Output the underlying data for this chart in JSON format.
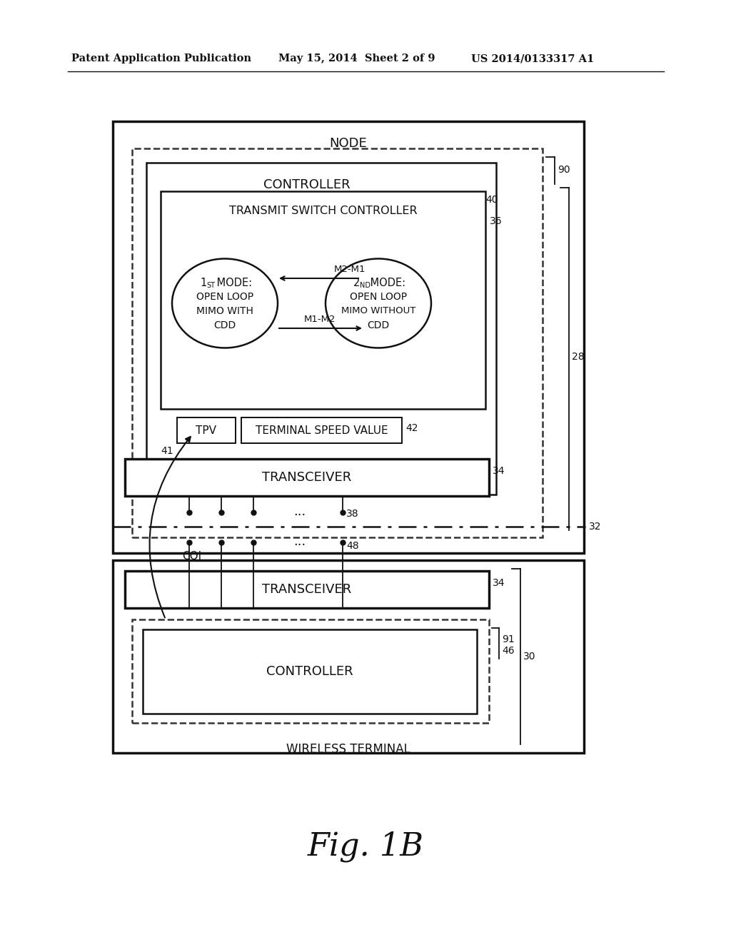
{
  "bg_color": "#ffffff",
  "header_left": "Patent Application Publication",
  "header_mid": "May 15, 2014  Sheet 2 of 9",
  "header_right": "US 2014/0133317 A1",
  "fig_caption": "Fig. 1B",
  "node_label": "NODE",
  "controller_label": "CONTROLLER",
  "tsc_label": "TRANSMIT SWITCH CONTROLLER",
  "m2m1_label": "M2-M1",
  "m1m2_label": "M1-M2",
  "tpv_label": "TPV",
  "tsv_label": "TERMINAL SPEED VALUE",
  "transceiver_label": "TRANSCEIVER",
  "cqi_label": "CQI",
  "wireless_label": "WIRELESS TERMINAL",
  "wt_controller_label": "CONTROLLER",
  "wt_transceiver_label": "TRANSCEIVER",
  "ref_40": "40",
  "ref_36": "36",
  "ref_90": "90",
  "ref_28": "28",
  "ref_34_top": "34",
  "ref_32": "32",
  "ref_38": "38",
  "ref_48": "48",
  "ref_41": "41",
  "ref_42": "42",
  "ref_34_bot": "34",
  "ref_30": "30",
  "ref_91": "91",
  "ref_46": "46"
}
